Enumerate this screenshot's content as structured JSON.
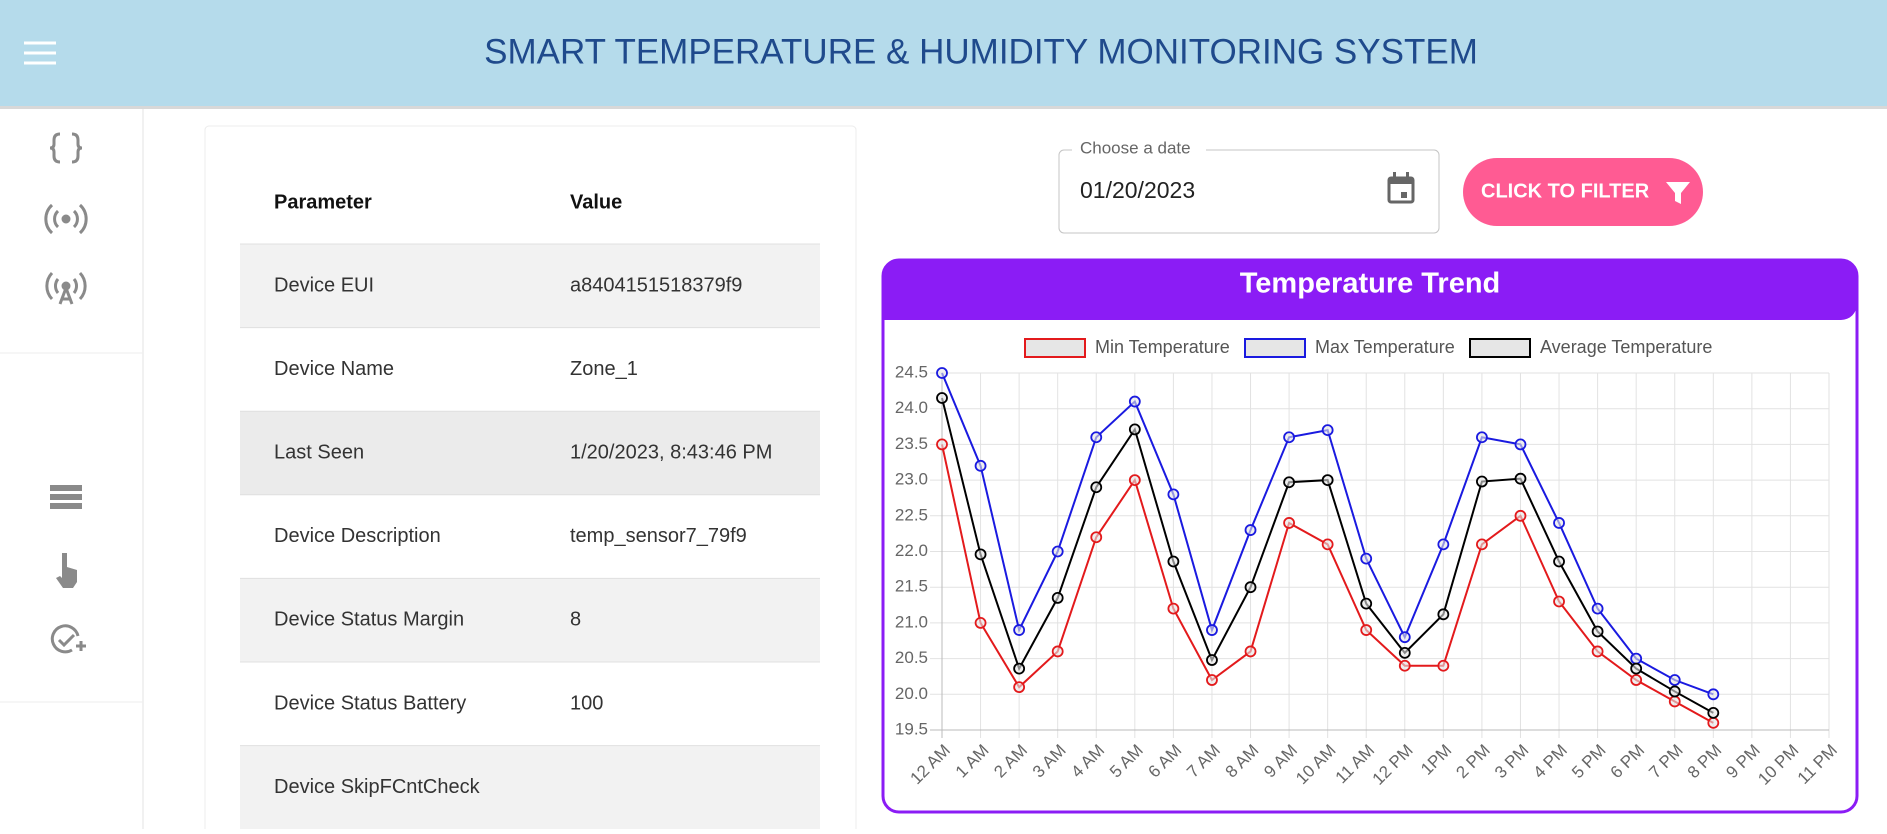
{
  "header": {
    "title": "SMART TEMPERATURE & HUMIDITY MONITORING SYSTEM"
  },
  "table": {
    "header": [
      "Parameter",
      "Value"
    ],
    "rows": [
      [
        "Device EUI",
        "a8404151518379f9"
      ],
      [
        "Device Name",
        "Zone_1"
      ],
      [
        "Last Seen",
        "1/20/2023, 8:43:46 PM"
      ],
      [
        "Device Description",
        "temp_sensor7_79f9"
      ],
      [
        "Device Status Margin",
        "8"
      ],
      [
        "Device Status Battery",
        "100"
      ],
      [
        "Device SkipFCntCheck"
      ]
    ]
  },
  "date_picker": {
    "label": "Choose a date",
    "value": "01/20/2023"
  },
  "button": {
    "label": "CLICK TO FILTER"
  },
  "chart_data": {
    "type": "line",
    "title": "Temperature Trend",
    "categories": [
      "12 AM",
      "1 AM",
      "2 AM",
      "3 AM",
      "4 AM",
      "5 AM",
      "6 AM",
      "7 AM",
      "8 AM",
      "9 AM",
      "10 AM",
      "11 AM",
      "12 PM",
      "1PM",
      "2 PM",
      "3 PM",
      "4 PM",
      "5 PM",
      "6 PM",
      "7 PM",
      "8 PM",
      "9 PM",
      "10 PM",
      "11 PM"
    ],
    "series": [
      {
        "name": "Min Temperature",
        "color": "#e31a1c",
        "values": [
          23.5,
          21.0,
          20.1,
          20.6,
          22.2,
          23.0,
          21.2,
          20.2,
          20.6,
          22.4,
          22.1,
          20.9,
          20.4,
          20.4,
          22.1,
          22.5,
          21.3,
          20.6,
          20.2,
          19.9,
          19.6,
          null,
          null,
          null
        ]
      },
      {
        "name": "Max Temperature",
        "color": "#1a1ae0",
        "values": [
          24.5,
          23.2,
          20.9,
          22.0,
          23.6,
          24.1,
          22.8,
          20.9,
          22.3,
          23.6,
          23.7,
          21.9,
          20.8,
          22.1,
          23.6,
          23.5,
          22.4,
          21.2,
          20.5,
          20.2,
          20.0,
          null,
          null,
          null
        ]
      },
      {
        "name": "Average Temperature",
        "color": "#000000",
        "values": [
          24.15,
          21.96,
          20.36,
          21.35,
          22.9,
          23.71,
          21.86,
          20.48,
          21.5,
          22.97,
          23.0,
          21.27,
          20.58,
          21.12,
          22.98,
          23.02,
          21.86,
          20.88,
          20.36,
          20.04,
          19.74,
          null,
          null,
          null
        ]
      }
    ],
    "ylim": [
      19.5,
      24.5
    ],
    "yticks": [
      19.5,
      {
        "value": 20,
        "label": "20.0"
      },
      20.5,
      {
        "value": 21,
        "label": "21.0"
      },
      21.5,
      {
        "value": 22,
        "label": "22.0"
      },
      22.5,
      {
        "value": 23,
        "label": "23.0"
      },
      23.5,
      {
        "value": 24,
        "label": "24.0"
      },
      24.5
    ],
    "grid": true,
    "legend": "top"
  }
}
